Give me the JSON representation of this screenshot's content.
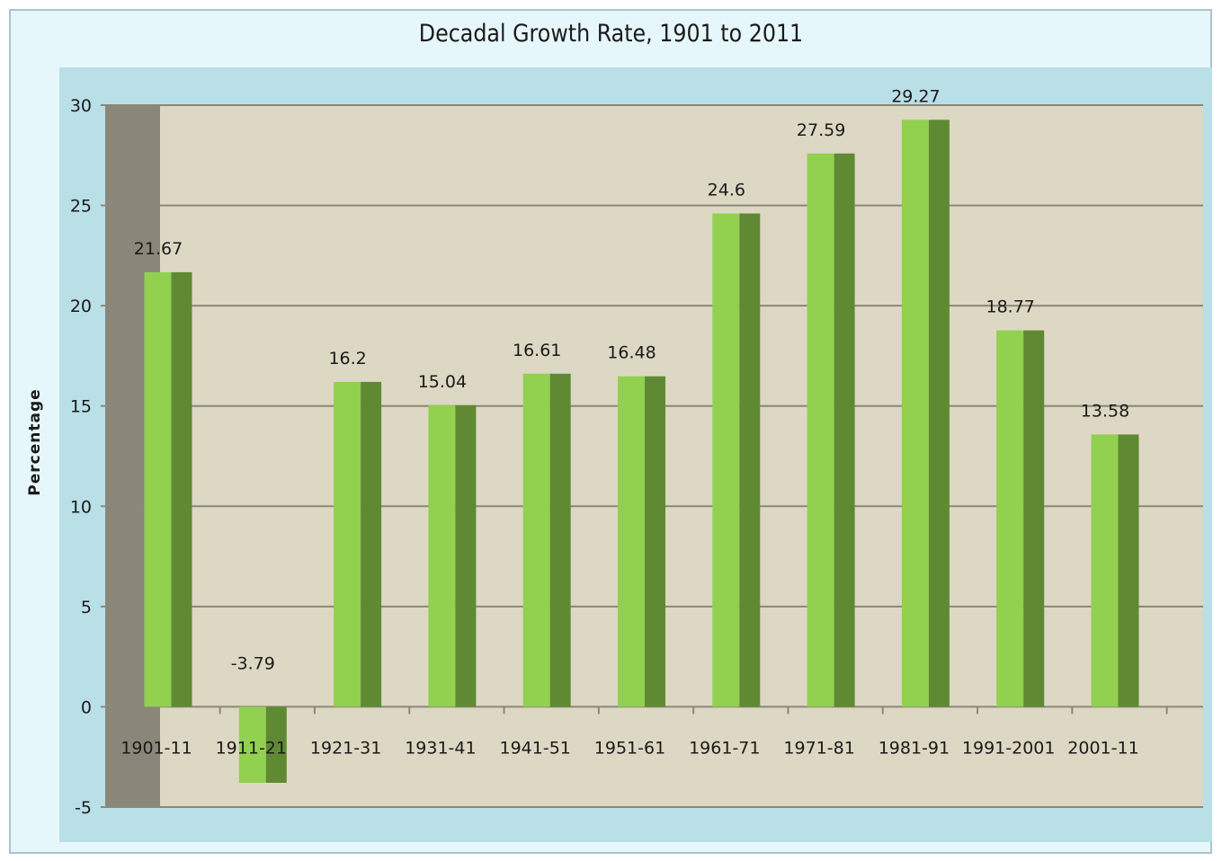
{
  "chart_data": {
    "type": "bar",
    "title": "Decadal Growth Rate, 1901 to 2011",
    "xlabel": "",
    "ylabel": "Percentage",
    "categories": [
      "1901-11",
      "1911-21",
      "1921-31",
      "1931-41",
      "1941-51",
      "1951-61",
      "1961-71",
      "1971-81",
      "1981-91",
      "1991-2001",
      "2001-11"
    ],
    "values": [
      21.67,
      -3.79,
      16.2,
      15.04,
      16.61,
      16.48,
      24.6,
      27.59,
      29.27,
      18.77,
      13.58
    ],
    "data_labels": [
      "21.67",
      "-3.79",
      "16.2",
      "15.04",
      "16.61",
      "16.48",
      "24.6",
      "27.59",
      "29.27",
      "18.77",
      "13.58"
    ],
    "yticks": [
      -5,
      0,
      5,
      10,
      15,
      20,
      25,
      30
    ],
    "ylim": [
      -5,
      30
    ],
    "grid": true,
    "legend": "none"
  },
  "colors": {
    "outer_bg": "#e6f7fb",
    "plot_border_bg": "#b9dfe7",
    "plot_bg": "#ddd8c3",
    "back_wall": "#8a867a",
    "bar_front": "#92d050",
    "bar_side": "#5f8a33",
    "gridline": "#8a8878"
  }
}
